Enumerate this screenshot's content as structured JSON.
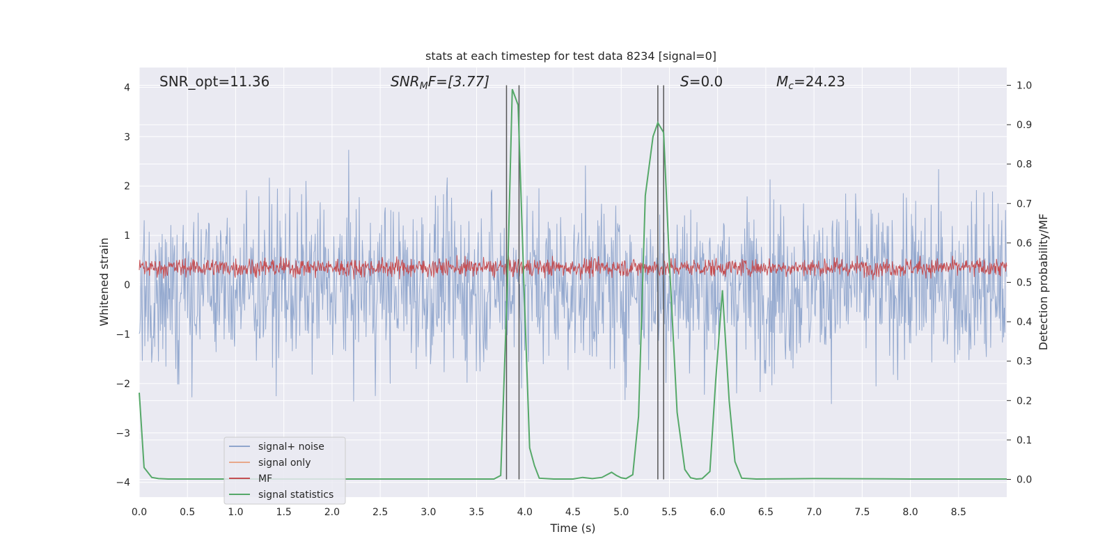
{
  "chart_data": {
    "type": "line",
    "title": "stats at each timestep for test data 8234 [signal=0]",
    "xlabel": "Time (s)",
    "ylabel_left": "Whitened strain",
    "ylabel_right": "Detection probability/MF",
    "xlim": [
      0.0,
      9.0
    ],
    "ylim_left": [
      -4.3,
      4.4
    ],
    "ylim_right": [
      -0.045,
      1.045
    ],
    "x_ticks": [
      "0.0",
      "0.5",
      "1.0",
      "1.5",
      "2.0",
      "2.5",
      "3.0",
      "3.5",
      "4.0",
      "4.5",
      "5.0",
      "5.5",
      "6.0",
      "6.5",
      "7.0",
      "7.5",
      "8.0",
      "8.5"
    ],
    "x_tick_values": [
      0.0,
      0.5,
      1.0,
      1.5,
      2.0,
      2.5,
      3.0,
      3.5,
      4.0,
      4.5,
      5.0,
      5.5,
      6.0,
      6.5,
      7.0,
      7.5,
      8.0,
      8.5
    ],
    "y_left_ticks": [
      "4",
      "3",
      "2",
      "1",
      "0",
      "−1",
      "−2",
      "−3",
      "−4"
    ],
    "y_left_tick_values": [
      4,
      3,
      2,
      1,
      0,
      -1,
      -2,
      -3,
      -4
    ],
    "y_right_ticks": [
      "1.0",
      "0.9",
      "0.8",
      "0.7",
      "0.6",
      "0.5",
      "0.4",
      "0.3",
      "0.2",
      "0.1",
      "0.0"
    ],
    "y_right_tick_values": [
      1.0,
      0.9,
      0.8,
      0.7,
      0.6,
      0.5,
      0.4,
      0.3,
      0.2,
      0.1,
      0.0
    ],
    "annotations": {
      "snr_opt": "SNR_opt=11.36",
      "snr_mf_main": "SNR",
      "snr_mf_sub": "M",
      "snr_mf_rest": "F=[3.77]",
      "s_stat_ital": "S",
      "s_stat_rest": "=0.0",
      "mc_main": "M",
      "mc_sub": "c",
      "mc_rest": "=24.23"
    },
    "series": [
      {
        "name": "signal+ noise",
        "color": "#8fa5cc",
        "axis": "left",
        "style": "noise band",
        "center": 0.0,
        "sigma": 1.0
      },
      {
        "name": "signal only",
        "color": "#e8a88a",
        "axis": "left",
        "style": "line",
        "values": []
      },
      {
        "name": "MF",
        "color": "#c44e52",
        "axis": "left",
        "style": "noise band",
        "center": 0.35,
        "sigma": 0.17
      },
      {
        "name": "signal statistics",
        "color": "#55a868",
        "axis": "right",
        "style": "line",
        "x": [
          0.0,
          0.05,
          0.13,
          0.2,
          0.3,
          0.5,
          1.0,
          2.0,
          3.0,
          3.5,
          3.68,
          3.75,
          3.82,
          3.87,
          3.93,
          3.99,
          4.05,
          4.1,
          4.15,
          4.3,
          4.5,
          4.6,
          4.7,
          4.8,
          4.9,
          4.95,
          5.0,
          5.05,
          5.12,
          5.18,
          5.25,
          5.33,
          5.38,
          5.44,
          5.5,
          5.58,
          5.66,
          5.72,
          5.78,
          5.84,
          5.92,
          5.98,
          6.05,
          6.12,
          6.18,
          6.25,
          6.4,
          7.0,
          8.0,
          9.0
        ],
        "values": [
          0.22,
          0.03,
          0.005,
          0.002,
          0.001,
          0.001,
          0.001,
          0.001,
          0.001,
          0.001,
          0.001,
          0.01,
          0.5,
          0.99,
          0.95,
          0.5,
          0.08,
          0.035,
          0.003,
          0.001,
          0.001,
          0.005,
          0.002,
          0.005,
          0.018,
          0.01,
          0.004,
          0.002,
          0.012,
          0.16,
          0.72,
          0.87,
          0.905,
          0.88,
          0.55,
          0.17,
          0.025,
          0.004,
          0.001,
          0.002,
          0.02,
          0.25,
          0.48,
          0.2,
          0.045,
          0.003,
          0.001,
          0.002,
          0.001,
          0.001
        ]
      }
    ],
    "vertical_markers": [
      3.81,
      3.94,
      5.38,
      5.44
    ]
  },
  "legend": {
    "items": [
      {
        "label": "signal+ noise",
        "color": "#8fa5cc"
      },
      {
        "label": "signal only",
        "color": "#e8a88a"
      },
      {
        "label": "MF",
        "color": "#c44e52"
      },
      {
        "label": "signal statistics",
        "color": "#55a868"
      }
    ]
  },
  "colors": {
    "plot_bg": "#eaeaf2",
    "grid": "#ffffff",
    "text": "#262626",
    "marker": "#555555"
  }
}
